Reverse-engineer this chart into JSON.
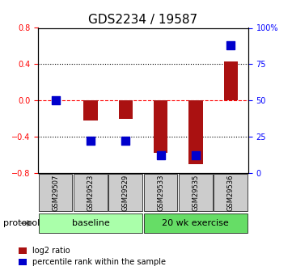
{
  "title": "GDS2234 / 19587",
  "samples": [
    "GSM29507",
    "GSM29523",
    "GSM29529",
    "GSM29533",
    "GSM29535",
    "GSM29536"
  ],
  "log2_ratio": [
    0.0,
    -0.22,
    -0.2,
    -0.58,
    -0.7,
    0.43
  ],
  "percentile_rank": [
    50,
    22,
    22,
    12,
    12,
    88
  ],
  "groups": [
    {
      "label": "baseline",
      "samples": [
        0,
        1,
        2
      ],
      "color": "#aaffaa"
    },
    {
      "label": "20 wk exercise",
      "samples": [
        3,
        4,
        5
      ],
      "color": "#66dd66"
    }
  ],
  "ylim_left": [
    -0.8,
    0.8
  ],
  "ylim_right": [
    0,
    100
  ],
  "yticks_left": [
    -0.8,
    -0.4,
    0.0,
    0.4,
    0.8
  ],
  "yticks_right": [
    0,
    25,
    50,
    75,
    100
  ],
  "bar_color": "#aa1111",
  "dot_color": "#0000cc",
  "hline_y": 0.0,
  "dotted_lines": [
    -0.4,
    0.4
  ],
  "bar_width": 0.4,
  "dot_size": 60,
  "legend_red_label": "log2 ratio",
  "legend_blue_label": "percentile rank within the sample",
  "protocol_label": "protocol",
  "group_label_fontsize": 9,
  "tick_fontsize": 7,
  "title_fontsize": 11
}
